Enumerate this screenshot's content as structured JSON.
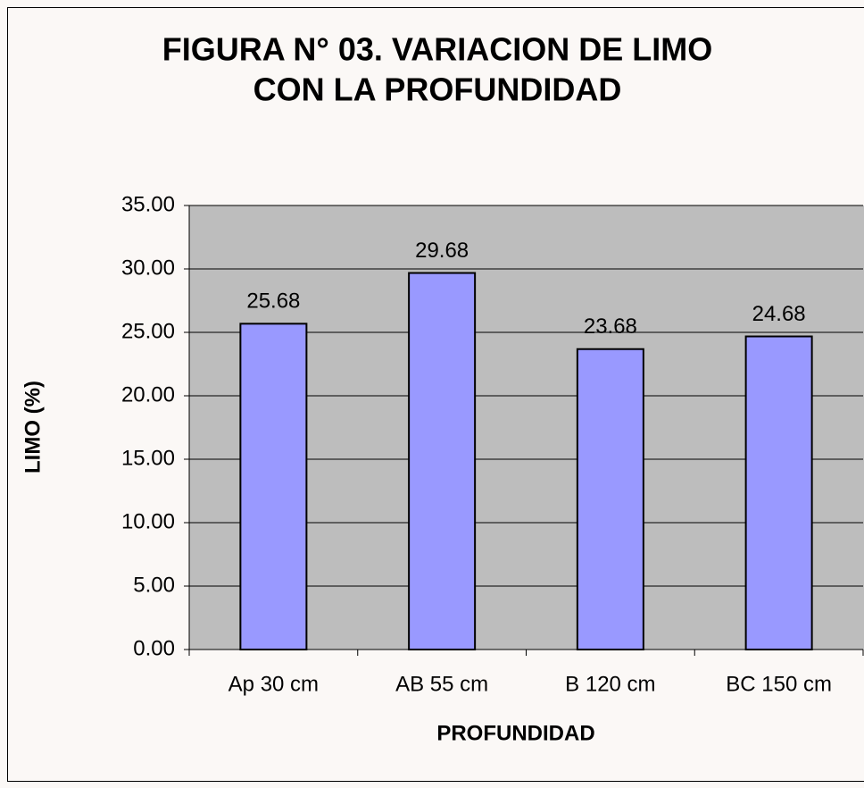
{
  "chart_data": {
    "type": "bar",
    "title": [
      "FIGURA N° 03. VARIACION DE LIMO",
      "CON LA PROFUNDIDAD"
    ],
    "x_label": "PROFUNDIDAD",
    "y_label": "LIMO (%)",
    "categories": [
      "Ap 30 cm",
      "AB 55 cm",
      "B 120 cm",
      "BC 150 cm"
    ],
    "values": [
      25.68,
      29.68,
      23.68,
      24.68
    ],
    "color": "#9999ff",
    "ylim": [
      0,
      35
    ],
    "yticks": [
      {
        "value": 0,
        "label": "0.00"
      },
      {
        "value": 5,
        "label": "5.00"
      },
      {
        "value": 10,
        "label": "10.00"
      },
      {
        "value": 15,
        "label": "15.00"
      },
      {
        "value": 20,
        "label": "20.00"
      },
      {
        "value": 25,
        "label": "25.00"
      },
      {
        "value": 30,
        "label": "30.00"
      },
      {
        "value": 35,
        "label": "35.00"
      }
    ],
    "grid": true
  }
}
